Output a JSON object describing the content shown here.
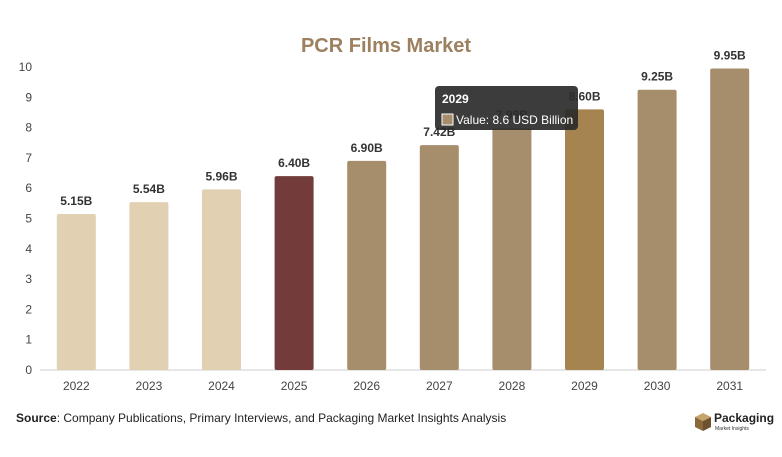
{
  "chart_data": {
    "type": "bar",
    "title": "PCR Films Market",
    "categories": [
      "2022",
      "2023",
      "2024",
      "2025",
      "2026",
      "2027",
      "2028",
      "2029",
      "2030",
      "2031"
    ],
    "values": [
      5.15,
      5.54,
      5.96,
      6.4,
      6.9,
      7.42,
      7.98,
      8.6,
      9.25,
      9.95
    ],
    "data_labels": [
      "5.15B",
      "5.54B",
      "5.96B",
      "6.40B",
      "6.90B",
      "7.42B",
      "7.98B",
      "8.60B",
      "9.25B",
      "9.95B"
    ],
    "yticks": [
      0,
      1,
      2,
      3,
      4,
      5,
      6,
      7,
      8,
      9,
      10
    ],
    "ylim": [
      0,
      10
    ],
    "grid": false,
    "legend": "none",
    "bar_colors": [
      "#e2d0b2",
      "#e2d0b2",
      "#e2d0b2",
      "#733c3b",
      "#a68e6d",
      "#a68e6d",
      "#a68e6d",
      "#a6844f",
      "#a68e6d",
      "#a68e6d"
    ],
    "title_color": "#9c8060",
    "tooltip": {
      "category": "2029",
      "title": "2029",
      "text": "Value: 8.6 USD Billion",
      "swatch_color": "#a68e6d",
      "background": "#2b2b2b"
    }
  },
  "footer": {
    "source_label": "Source",
    "source_text": ": Company Publications, Primary Interviews, and Packaging Market Insights Analysis"
  },
  "logo": {
    "name": "Packaging",
    "tagline": "Market Insights"
  }
}
